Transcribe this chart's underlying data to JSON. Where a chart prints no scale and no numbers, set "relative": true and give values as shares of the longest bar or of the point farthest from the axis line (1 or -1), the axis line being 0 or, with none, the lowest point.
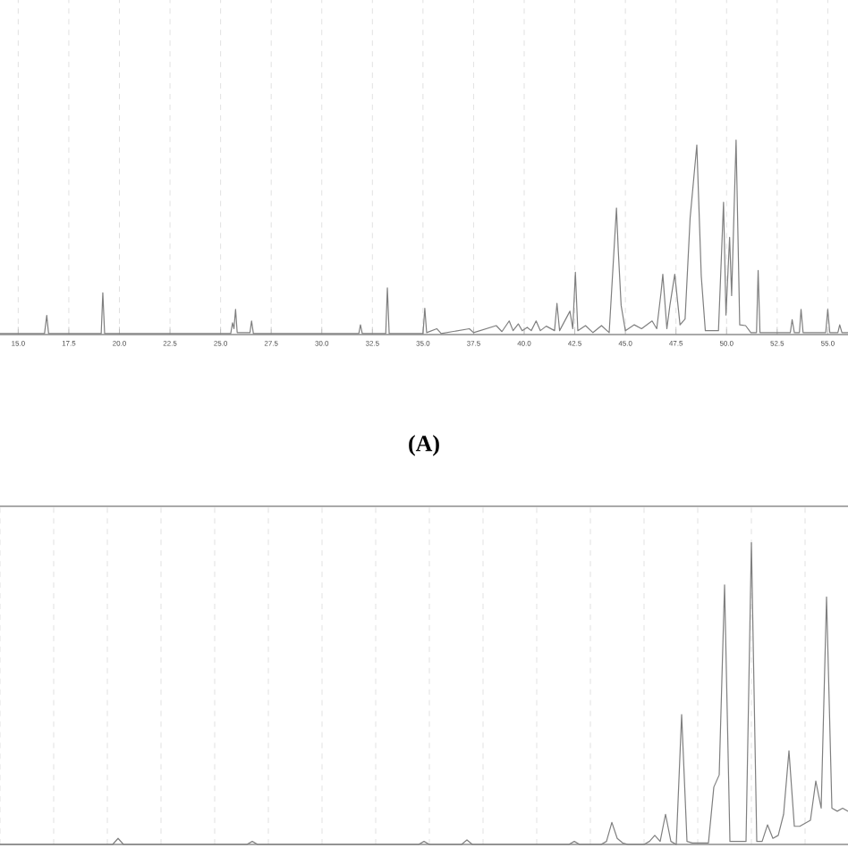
{
  "chart_data": [
    {
      "type": "line",
      "relative": true,
      "color": "#7f7f7f",
      "grid": true,
      "annotations": [
        "**(A)**"
      ],
      "xlim": [
        14.1,
        56.0
      ],
      "xticks": [
        {
          "value": 15,
          "label": "15.0"
        },
        {
          "value": 17.5,
          "label": "17.5"
        },
        {
          "value": 20,
          "label": "20.0"
        },
        {
          "value": 22.5,
          "label": "22.5"
        },
        {
          "value": 25,
          "label": "25.0"
        },
        {
          "value": 27.5,
          "label": "27.5"
        },
        {
          "value": 30,
          "label": "30.0"
        },
        {
          "value": 32.5,
          "label": "32.5"
        },
        {
          "value": 35,
          "label": "35.0"
        },
        {
          "value": 37.5,
          "label": "37.5"
        },
        {
          "value": 40,
          "label": "40.0"
        },
        {
          "value": 42.5,
          "label": "42.5"
        },
        {
          "value": 45,
          "label": "45.0"
        },
        {
          "value": 47.5,
          "label": "47.5"
        },
        {
          "value": 50,
          "label": "50.0"
        },
        {
          "value": 52.5,
          "label": "52.5"
        },
        {
          "value": 55,
          "label": "55.0"
        }
      ],
      "x": [
        14.1,
        16.3,
        16.41,
        16.5,
        19.1,
        19.18,
        19.27,
        25.5,
        25.59,
        25.66,
        25.74,
        25.82,
        26.45,
        26.53,
        26.62,
        31.83,
        31.91,
        32.0,
        33.16,
        33.24,
        33.33,
        35.0,
        35.09,
        35.18,
        35.68,
        35.9,
        37.29,
        37.5,
        38.62,
        38.9,
        39.26,
        39.45,
        39.71,
        39.9,
        40.15,
        40.35,
        40.59,
        40.8,
        41.09,
        41.5,
        41.62,
        41.75,
        42.26,
        42.4,
        42.53,
        42.65,
        43.03,
        43.4,
        43.82,
        44.2,
        44.56,
        44.65,
        44.79,
        45.0,
        45.44,
        45.8,
        46.32,
        46.55,
        46.76,
        46.85,
        47.05,
        47.2,
        47.44,
        47.7,
        47.95,
        48.2,
        48.53,
        48.75,
        48.95,
        49.6,
        49.85,
        49.97,
        50.15,
        50.25,
        50.47,
        50.65,
        50.94,
        51.2,
        51.48,
        51.56,
        51.65,
        52.5,
        53.15,
        53.24,
        53.35,
        53.6,
        53.68,
        53.78,
        54.9,
        55.0,
        55.1,
        55.5,
        55.59,
        55.7,
        56.0
      ],
      "values": [
        0.005,
        0.005,
        0.098,
        0.005,
        0.005,
        0.215,
        0.005,
        0.005,
        0.06,
        0.03,
        0.13,
        0.01,
        0.01,
        0.07,
        0.005,
        0.005,
        0.05,
        0.005,
        0.005,
        0.24,
        0.005,
        0.005,
        0.135,
        0.01,
        0.03,
        0.005,
        0.03,
        0.01,
        0.046,
        0.015,
        0.07,
        0.02,
        0.055,
        0.02,
        0.037,
        0.02,
        0.07,
        0.02,
        0.043,
        0.02,
        0.16,
        0.02,
        0.12,
        0.03,
        0.32,
        0.02,
        0.046,
        0.01,
        0.046,
        0.01,
        0.65,
        0.43,
        0.15,
        0.02,
        0.05,
        0.03,
        0.07,
        0.03,
        0.215,
        0.31,
        0.03,
        0.15,
        0.31,
        0.05,
        0.08,
        0.6,
        0.975,
        0.3,
        0.02,
        0.02,
        0.68,
        0.1,
        0.5,
        0.2,
        1.0,
        0.05,
        0.046,
        0.01,
        0.01,
        0.33,
        0.01,
        0.01,
        0.01,
        0.077,
        0.01,
        0.01,
        0.13,
        0.01,
        0.01,
        0.13,
        0.01,
        0.01,
        0.05,
        0.01,
        0.01
      ]
    },
    {
      "type": "line",
      "relative": true,
      "color": "#7f7f7f",
      "grid": true,
      "categories": [
        null,
        null,
        null,
        null,
        null,
        null,
        null,
        null,
        null,
        null,
        null,
        null,
        null,
        null,
        null,
        null,
        null,
        null,
        null,
        null,
        null,
        null,
        null,
        null,
        null,
        null,
        null,
        null,
        null,
        null,
        null,
        null,
        null,
        null,
        null,
        null,
        null,
        null,
        null,
        null,
        null,
        null,
        null,
        null,
        null,
        null,
        null,
        null,
        null,
        null,
        null,
        null,
        null,
        null,
        null,
        null,
        null,
        null,
        null,
        null,
        null,
        null,
        null,
        null,
        null,
        null,
        null,
        null,
        null,
        null,
        null,
        null,
        null,
        null,
        null,
        null,
        null,
        null,
        null,
        null,
        null,
        null,
        null,
        null,
        null,
        null,
        null,
        null,
        null,
        null,
        null,
        null,
        null,
        null,
        null,
        null,
        null,
        null,
        null,
        null,
        null,
        null,
        null,
        null,
        null,
        null,
        null,
        null,
        null,
        null,
        null,
        null,
        null,
        null,
        null,
        null,
        null,
        null,
        null,
        null,
        null,
        null,
        null,
        null,
        null,
        null,
        null,
        null,
        null,
        null,
        null,
        null,
        null,
        null,
        null,
        null,
        null,
        null,
        null,
        null,
        null,
        null,
        null,
        null,
        null,
        null,
        null,
        null,
        null,
        null,
        null,
        null,
        null,
        null,
        null,
        null,
        null,
        null,
        null
      ],
      "values": [
        0,
        0,
        0,
        0,
        0,
        0,
        0,
        0,
        0,
        0,
        0,
        0,
        0,
        0,
        0,
        0,
        0,
        0,
        0,
        0,
        0,
        0,
        0.02,
        0,
        0,
        0,
        0,
        0,
        0,
        0,
        0,
        0,
        0,
        0,
        0,
        0,
        0,
        0,
        0,
        0,
        0,
        0,
        0,
        0,
        0,
        0,
        0,
        0.01,
        0,
        0,
        0,
        0,
        0,
        0,
        0,
        0,
        0,
        0,
        0,
        0,
        0,
        0,
        0,
        0,
        0,
        0,
        0,
        0,
        0,
        0,
        0,
        0,
        0,
        0,
        0,
        0,
        0,
        0,
        0,
        0.01,
        0,
        0,
        0,
        0,
        0,
        0,
        0,
        0.015,
        0,
        0,
        0,
        0,
        0,
        0,
        0,
        0,
        0,
        0,
        0,
        0,
        0,
        0,
        0,
        0,
        0,
        0,
        0,
        0.01,
        0,
        0,
        0,
        0,
        0,
        0.01,
        0.073,
        0.02,
        0.005,
        0,
        0,
        0,
        0,
        0.01,
        0.03,
        0.01,
        0.1,
        0.01,
        0,
        0.43,
        0.01,
        0.005,
        0.005,
        0.005,
        0.005,
        0.19,
        0.23,
        0.86,
        0.01,
        0.01,
        0.01,
        0.01,
        1.0,
        0.01,
        0.01,
        0.065,
        0.02,
        0.03,
        0.1,
        0.31,
        0.06,
        0.06,
        0.07,
        0.08,
        0.21,
        0.12,
        0.82,
        0.12,
        0.11,
        0.12,
        0.11
      ]
    }
  ]
}
